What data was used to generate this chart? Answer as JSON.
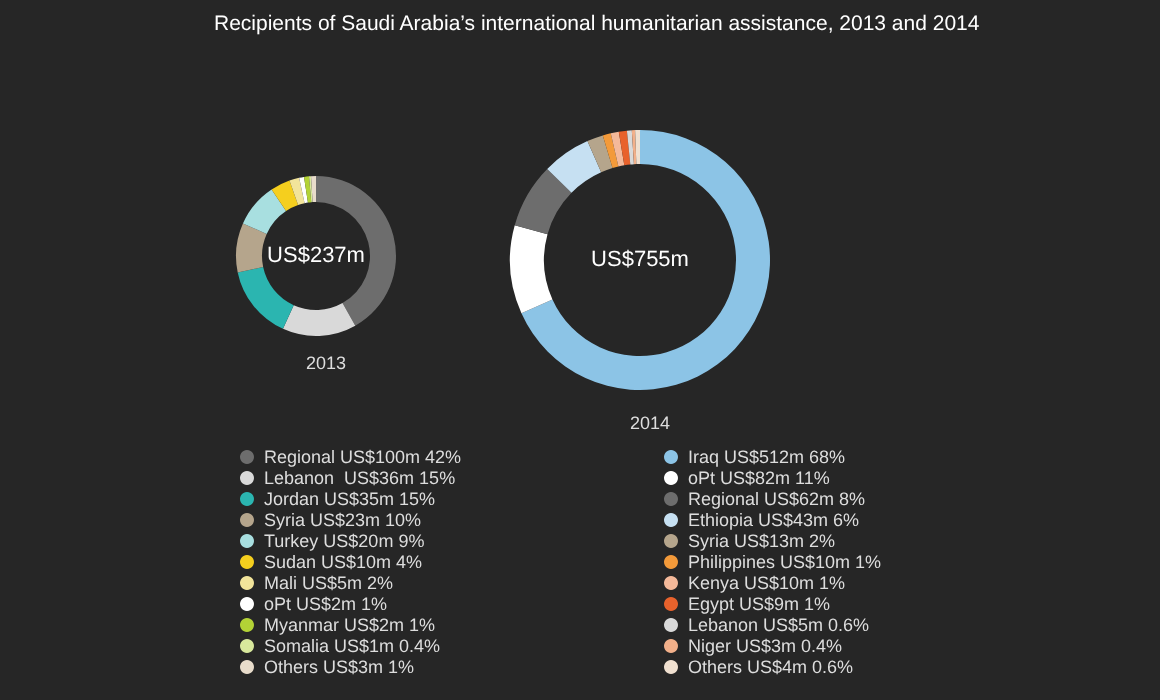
{
  "chart_data": [
    {
      "type": "donut",
      "title": "Recipients of Saudi Arabia’s international humanitarian assistance, 2013 and 2014",
      "subtitle": "2013",
      "annotations": [
        "US$237m"
      ],
      "legend": "bottom",
      "categories": [
        "Regional US$100m 42%",
        "Lebanon  US$36m 15%",
        "Jordan US$35m 15%",
        "Syria US$23m 10%",
        "Turkey US$20m 9%",
        "Sudan US$10m 4%",
        "Mali US$5m 2%",
        "oPt US$2m 1%",
        "Myanmar US$2m 1%",
        "Somalia US$1m 0.4%",
        "Others US$3m 1%"
      ],
      "values": [
        42,
        15,
        15,
        10,
        9,
        4,
        2,
        1,
        1,
        0.4,
        1
      ],
      "colors": [
        "#6d6d6d",
        "#d9d9d9",
        "#2bb5b0",
        "#b5a58c",
        "#a8dfe0",
        "#f5cf1e",
        "#f2e49a",
        "#ffffff",
        "#b3d236",
        "#d8e89c",
        "#e8dccb"
      ]
    },
    {
      "type": "donut",
      "subtitle": "2014",
      "annotations": [
        "US$755m"
      ],
      "legend": "bottom",
      "categories": [
        "Iraq US$512m 68%",
        "oPt US$82m 11%",
        "Regional US$62m 8%",
        "Ethiopia US$43m 6%",
        "Syria US$13m 2%",
        "Philippines US$10m 1%",
        "Kenya US$10m 1%",
        "Egypt US$9m 1%",
        "Lebanon US$5m 0.6%",
        "Niger US$3m 0.4%",
        "Others US$4m 0.6%"
      ],
      "values": [
        68,
        11,
        8,
        6,
        2,
        1,
        1,
        1,
        0.6,
        0.4,
        0.6
      ],
      "colors": [
        "#8cc4e6",
        "#ffffff",
        "#6d6d6d",
        "#c6e0f2",
        "#b5a58c",
        "#f39a3a",
        "#f4b99a",
        "#e8622c",
        "#d9d9d9",
        "#f2b08a",
        "#f0e0d0"
      ]
    }
  ]
}
